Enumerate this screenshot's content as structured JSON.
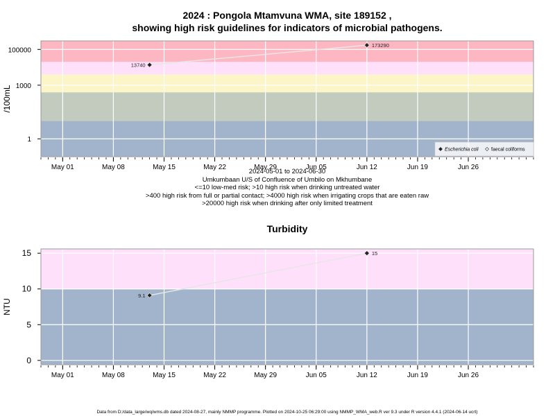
{
  "title_line1": "2024 : Pongola Mtamvuna WMA, site 189152 ,",
  "title_line2": "showing high risk guidelines for indicators of microbial pathogens.",
  "caption_lines": [
    "2024-05-01 to 2024-06-30",
    "Umkumbaan U/S of Confluence of Umbilo on Mkhumbane",
    "<=10 low-med risk; >10 high risk when drinking untreated water",
    ">400 high risk from full or partial contact; >4000 high risk when irrigating crops that are eaten raw",
    ">20000 high risk when drinking after only limited treatment"
  ],
  "footer": "Data from D:/data_large/wq/wms.db dated 2024-08-27, mainly NMMP programme. Plotted on 2024-10-25 06:29:00 using NMMP_WMA_web.R ver 9.3 under R version 4.4.1 (2024-06-14 ucrt)",
  "chart_data": [
    {
      "type": "scatter",
      "title": "",
      "ylabel": "/100mL",
      "yscale": "log",
      "yticks": [
        "1",
        "1000",
        "100000"
      ],
      "xticks": [
        "May 01",
        "May 08",
        "May 15",
        "May 22",
        "May 29",
        "Jun 05",
        "Jun 12",
        "Jun 19",
        "Jun 26"
      ],
      "xlim": [
        "2024-04-28",
        "2024-07-05"
      ],
      "ylim": [
        0.1,
        300000
      ],
      "bands": [
        {
          "from": 0.1,
          "to": 10,
          "color": "#a2b4cb"
        },
        {
          "from": 10,
          "to": 400,
          "color": "#c3cbbf"
        },
        {
          "from": 400,
          "to": 4000,
          "color": "#fbf5c8"
        },
        {
          "from": 4000,
          "to": 20000,
          "color": "#ffe0fb"
        },
        {
          "from": 20000,
          "to": 300000,
          "color": "#fdb7c3"
        }
      ],
      "legend_position": "bottom-right",
      "legend": [
        {
          "label": "Escherichia coli",
          "marker": "filled-diamond",
          "italic": true
        },
        {
          "label": "faecal coliforms",
          "marker": "open-diamond",
          "italic": false
        }
      ],
      "series": [
        {
          "name": "Escherichia coli",
          "points": [
            {
              "x": "2024-05-13",
              "y": 13740,
              "label": "13740",
              "label_side": "left"
            },
            {
              "x": "2024-06-12",
              "y": 173290,
              "label": "173290",
              "label_side": "right"
            }
          ]
        }
      ]
    },
    {
      "type": "scatter",
      "title": "Turbidity",
      "ylabel": "NTU",
      "yscale": "linear",
      "yticks": [
        "0",
        "5",
        "10",
        "15"
      ],
      "xticks": [
        "May 01",
        "May 08",
        "May 15",
        "May 22",
        "May 29",
        "Jun 05",
        "Jun 12",
        "Jun 19",
        "Jun 26"
      ],
      "xlim": [
        "2024-04-28",
        "2024-07-05"
      ],
      "ylim": [
        -0.6,
        15.6
      ],
      "bands": [
        {
          "from": -0.6,
          "to": 10,
          "color": "#a2b4cb"
        },
        {
          "from": 10,
          "to": 15.6,
          "color": "#ffe0fb"
        }
      ],
      "series": [
        {
          "name": "",
          "points": [
            {
              "x": "2024-05-13",
              "y": 9.1,
              "label": "9.1",
              "label_side": "left"
            },
            {
              "x": "2024-06-12",
              "y": 15,
              "label": "15",
              "label_side": "right"
            }
          ]
        }
      ]
    }
  ]
}
